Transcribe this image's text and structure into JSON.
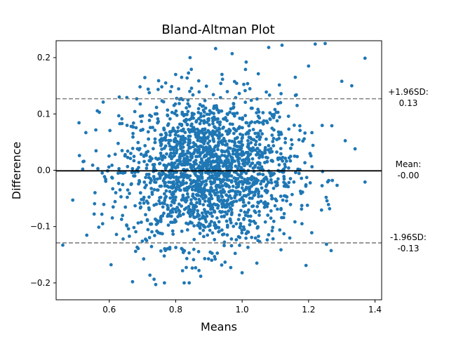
{
  "chart_data": {
    "type": "scatter",
    "title": "Bland-Altman Plot",
    "xlabel": "Means",
    "ylabel": "Difference",
    "xlim": [
      0.44,
      1.42
    ],
    "ylim": [
      -0.23,
      0.23
    ],
    "xticks": [
      0.6,
      0.8,
      1.0,
      1.2,
      1.4
    ],
    "xtick_labels": [
      "0.6",
      "0.8",
      "1.0",
      "1.2",
      "1.4"
    ],
    "yticks": [
      -0.2,
      -0.1,
      0.0,
      0.1,
      0.2
    ],
    "ytick_labels": [
      "−0.2",
      "−0.1",
      "0.0",
      "0.1",
      "0.2"
    ],
    "grid": false,
    "point_color": "#1f77b4",
    "mean_line": {
      "value": -0.001,
      "label_line1": "Mean:",
      "label_line2": "-0.00",
      "color": "#000000",
      "style": "solid"
    },
    "upper_loa": {
      "value": 0.127,
      "label_line1": "+1.96SD:",
      "label_line2": "0.13",
      "color": "#808080",
      "style": "dashed"
    },
    "lower_loa": {
      "value": -0.129,
      "label_line1": "-1.96SD:",
      "label_line2": "-0.13",
      "color": "#808080",
      "style": "dashed"
    },
    "point_count": 2000,
    "distribution": {
      "mean_x": 0.9,
      "sd_x": 0.13,
      "mean_y": 0.0,
      "sd_y": 0.066
    },
    "sample_points": [
      [
        0.46,
        -0.133
      ],
      [
        0.49,
        -0.053
      ],
      [
        0.52,
        0.002
      ],
      [
        0.55,
        0.009
      ],
      [
        0.57,
        0.103
      ],
      [
        0.58,
        -0.095
      ],
      [
        0.63,
        0.13
      ],
      [
        0.67,
        -0.198
      ],
      [
        0.74,
        -0.203
      ],
      [
        0.77,
        0.155
      ],
      [
        0.8,
        0.17
      ],
      [
        0.87,
        -0.178
      ],
      [
        0.92,
        0.216
      ],
      [
        0.97,
        0.207
      ],
      [
        1.01,
        0.179
      ],
      [
        1.0,
        -0.182
      ],
      [
        1.08,
        0.218
      ],
      [
        1.12,
        0.222
      ],
      [
        1.16,
        0.165
      ],
      [
        1.2,
        0.185
      ],
      [
        1.22,
        0.224
      ],
      [
        1.25,
        0.225
      ],
      [
        1.3,
        0.158
      ],
      [
        1.33,
        0.15
      ],
      [
        1.37,
        0.199
      ],
      [
        1.34,
        0.038
      ],
      [
        1.37,
        -0.021
      ],
      [
        1.27,
        0.079
      ],
      [
        1.26,
        -0.061
      ],
      [
        1.18,
        -0.095
      ]
    ]
  }
}
